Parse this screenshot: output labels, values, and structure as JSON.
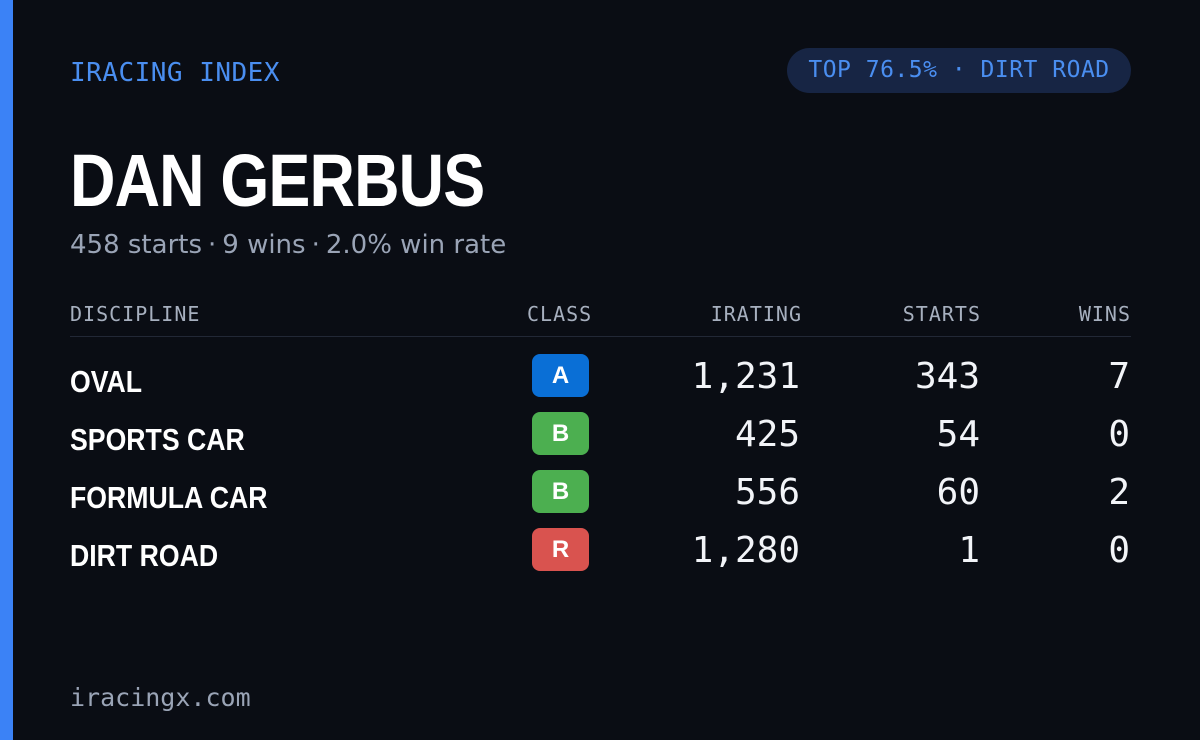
{
  "brand": "IRACING INDEX",
  "pill": "TOP 76.5% · DIRT ROAD",
  "driver_name": "DAN GERBUS",
  "summary": {
    "starts": "458 starts",
    "wins": "9 wins",
    "win_rate": "2.0% win rate",
    "separator": "·"
  },
  "table": {
    "headers": {
      "discipline": "DISCIPLINE",
      "class": "CLASS",
      "irating": "IRATING",
      "starts": "STARTS",
      "wins": "WINS"
    },
    "rows": [
      {
        "discipline": "OVAL",
        "class": "A",
        "class_color": "#0a6fd6",
        "irating": "1,231",
        "starts": "343",
        "wins": "7"
      },
      {
        "discipline": "SPORTS CAR",
        "class": "B",
        "class_color": "#4caf50",
        "irating": "425",
        "starts": "54",
        "wins": "0"
      },
      {
        "discipline": "FORMULA CAR",
        "class": "B",
        "class_color": "#4caf50",
        "irating": "556",
        "starts": "60",
        "wins": "2"
      },
      {
        "discipline": "DIRT ROAD",
        "class": "R",
        "class_color": "#d9534f",
        "irating": "1,280",
        "starts": "1",
        "wins": "0"
      }
    ]
  },
  "footer": "iracingx.com",
  "colors": {
    "accent": "#3b82f6",
    "background": "#0a0d14",
    "pill_bg": "#172544"
  }
}
